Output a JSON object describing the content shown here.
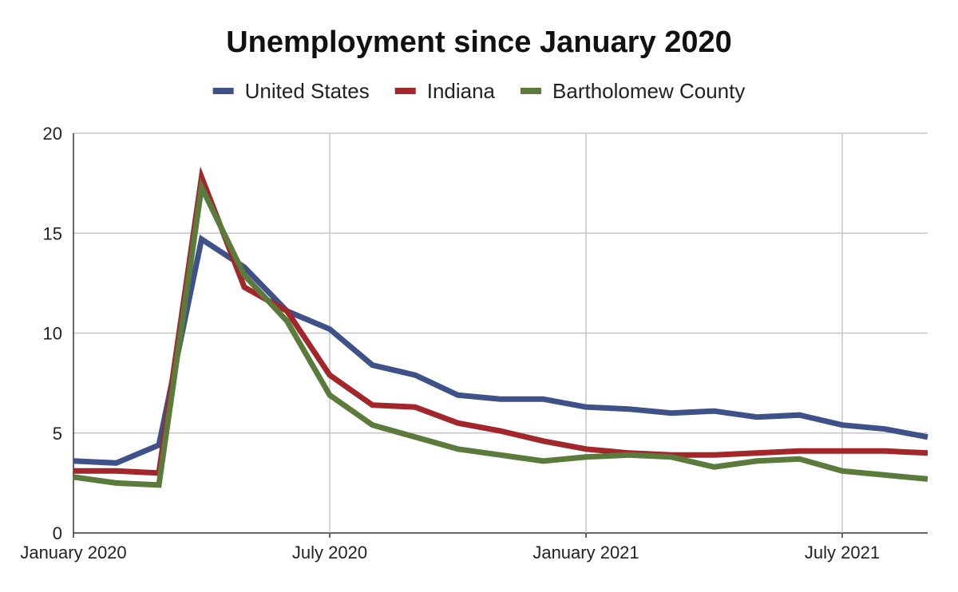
{
  "chart_data": {
    "type": "line",
    "title": "Unemployment since January 2020",
    "xlabel": "",
    "ylabel": "",
    "x": [
      "2020-01",
      "2020-02",
      "2020-03",
      "2020-04",
      "2020-05",
      "2020-06",
      "2020-07",
      "2020-08",
      "2020-09",
      "2020-10",
      "2020-11",
      "2020-12",
      "2021-01",
      "2021-02",
      "2021-03",
      "2021-04",
      "2021-05",
      "2021-06",
      "2021-07",
      "2021-08",
      "2021-09"
    ],
    "x_ticks": [
      {
        "x": "2020-01",
        "label": "January 2020"
      },
      {
        "x": "2020-07",
        "label": "July 2020"
      },
      {
        "x": "2021-01",
        "label": "January 2021"
      },
      {
        "x": "2021-07",
        "label": "July 2021"
      }
    ],
    "ylim": [
      0,
      20
    ],
    "y_ticks": [
      0,
      5,
      10,
      15,
      20
    ],
    "grid": true,
    "legend_position": "top-center",
    "series": [
      {
        "name": "United States",
        "color": "#3f5189",
        "values": [
          3.6,
          3.5,
          4.4,
          14.7,
          13.3,
          11.1,
          10.2,
          8.4,
          7.9,
          6.9,
          6.7,
          6.7,
          6.3,
          6.2,
          6.0,
          6.1,
          5.8,
          5.9,
          5.4,
          5.2,
          4.8
        ]
      },
      {
        "name": "Indiana",
        "color": "#a3262b",
        "values": [
          3.1,
          3.1,
          3.0,
          17.8,
          12.3,
          11.1,
          7.9,
          6.4,
          6.3,
          5.5,
          5.1,
          4.6,
          4.2,
          4.0,
          3.9,
          3.9,
          4.0,
          4.1,
          4.1,
          4.1,
          4.0
        ]
      },
      {
        "name": "Bartholomew County",
        "color": "#5a7b3c",
        "values": [
          2.8,
          2.5,
          2.4,
          17.3,
          12.9,
          10.6,
          6.9,
          5.4,
          4.8,
          4.2,
          3.9,
          3.6,
          3.8,
          3.9,
          3.8,
          3.3,
          3.6,
          3.7,
          3.1,
          2.9,
          2.7
        ]
      }
    ]
  }
}
